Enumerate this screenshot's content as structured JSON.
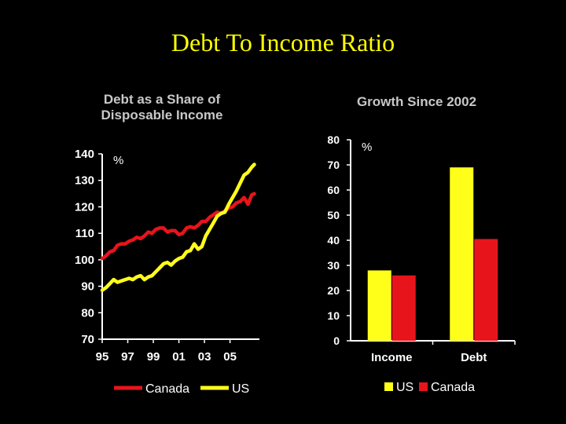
{
  "slide": {
    "title": "Debt To Income Ratio"
  },
  "chart_data": [
    {
      "type": "line",
      "title_lines": [
        "Debt as a Share of",
        "Disposable Income"
      ],
      "unit": "%",
      "ylim": [
        70,
        140
      ],
      "y_ticks": [
        140,
        130,
        120,
        110,
        100,
        90,
        80,
        70
      ],
      "x_ticks": [
        {
          "label": "95",
          "year": 1995
        },
        {
          "label": "97",
          "year": 1997
        },
        {
          "label": "99",
          "year": 1999
        },
        {
          "label": "01",
          "year": 2001
        },
        {
          "label": "03",
          "year": 2003
        },
        {
          "label": "05",
          "year": 2005
        }
      ],
      "xlim": [
        1995,
        2007.3
      ],
      "series": [
        {
          "name": "Canada",
          "color": "#e8141b",
          "x": [
            1995,
            1995.3,
            1995.6,
            1995.9,
            1996.2,
            1996.5,
            1996.8,
            1997.1,
            1997.4,
            1997.7,
            1998.0,
            1998.3,
            1998.6,
            1998.9,
            1999.2,
            1999.5,
            1999.8,
            2000.1,
            2000.4,
            2000.7,
            2001.0,
            2001.3,
            2001.6,
            2001.9,
            2002.2,
            2002.5,
            2002.8,
            2003.1,
            2003.4,
            2003.7,
            2004.0,
            2004.3,
            2004.6,
            2004.9,
            2005.2,
            2005.5,
            2005.8,
            2006.1,
            2006.4,
            2006.7,
            2006.9
          ],
          "y": [
            100.5,
            101.5,
            103,
            103.5,
            105.5,
            106,
            106,
            107,
            107.5,
            108.5,
            108,
            109,
            110.5,
            110,
            111.5,
            112,
            112,
            110.5,
            111,
            111,
            109.5,
            110,
            112,
            112.5,
            112,
            113,
            114.5,
            114.5,
            116,
            117,
            118,
            117.5,
            118.5,
            119.5,
            120,
            121.5,
            122,
            123.5,
            121,
            124.5,
            125
          ]
        },
        {
          "name": "US",
          "color": "#ffff1a",
          "x": [
            1995,
            1995.3,
            1995.6,
            1995.9,
            1996.2,
            1996.5,
            1996.8,
            1997.1,
            1997.4,
            1997.7,
            1998.0,
            1998.3,
            1998.6,
            1998.9,
            1999.2,
            1999.5,
            1999.8,
            2000.1,
            2000.4,
            2000.7,
            2001.0,
            2001.3,
            2001.6,
            2001.9,
            2002.2,
            2002.5,
            2002.8,
            2003.1,
            2003.4,
            2003.7,
            2004.0,
            2004.3,
            2004.6,
            2004.9,
            2005.2,
            2005.5,
            2005.8,
            2006.1,
            2006.4,
            2006.7,
            2006.9
          ],
          "y": [
            88.5,
            89.5,
            91,
            92.5,
            91.5,
            92,
            92.5,
            93,
            92.5,
            93.5,
            94,
            92.5,
            93.5,
            94,
            95.5,
            97,
            98.5,
            99,
            98,
            99.5,
            100.5,
            101,
            103,
            103.5,
            106,
            104,
            105,
            109,
            111.5,
            114,
            116.5,
            117.5,
            118,
            121,
            123.5,
            126,
            129,
            132,
            133,
            135,
            136
          ]
        }
      ],
      "legend": {
        "position": "bottom",
        "items": [
          "Canada",
          "US"
        ]
      }
    },
    {
      "type": "bar",
      "title_lines": [
        "Growth Since 2002"
      ],
      "unit": "%",
      "ylim": [
        0,
        80
      ],
      "y_ticks": [
        80,
        70,
        60,
        50,
        40,
        30,
        20,
        10,
        0
      ],
      "categories": [
        "Income",
        "Debt"
      ],
      "series": [
        {
          "name": "US",
          "color": "#ffff1a",
          "values": [
            28,
            69
          ]
        },
        {
          "name": "Canada",
          "color": "#e8141b",
          "values": [
            26,
            40.5
          ]
        }
      ],
      "legend": {
        "position": "bottom",
        "items": [
          "US",
          "Canada"
        ]
      }
    }
  ]
}
